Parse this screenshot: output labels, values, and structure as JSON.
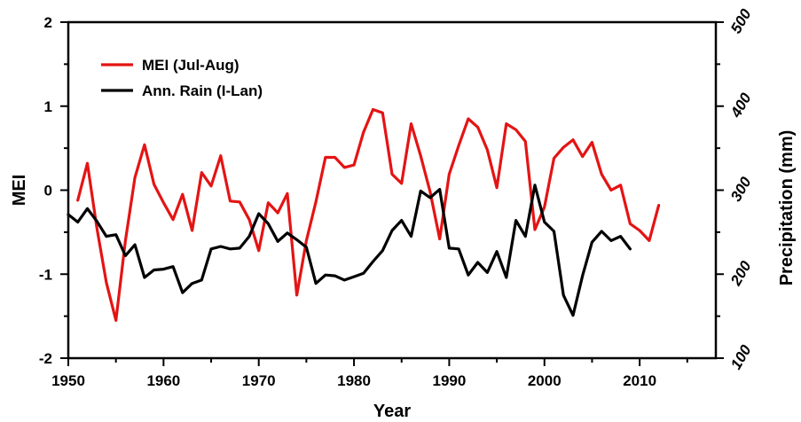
{
  "chart_data": {
    "type": "line",
    "xlabel": "Year",
    "ylabel": "MEI",
    "y2label": "Precipitation (mm)",
    "xlim": [
      1950,
      2018
    ],
    "ylim": [
      -2,
      2
    ],
    "y2lim": [
      100,
      500
    ],
    "xticks": [
      "1950",
      "1960",
      "1970",
      "1980",
      "1990",
      "2000",
      "2010"
    ],
    "yticks": [
      "-2",
      "-1",
      "0",
      "1",
      "2"
    ],
    "y2ticks": [
      "100",
      "200",
      "300",
      "400",
      "500"
    ],
    "legend_position": "top-left",
    "series": [
      {
        "name": "MEI (Jul-Aug)",
        "axis": "left",
        "color": "#e41414",
        "x": [
          1951,
          1952,
          1953,
          1954,
          1955,
          1956,
          1957,
          1958,
          1959,
          1960,
          1961,
          1962,
          1963,
          1964,
          1965,
          1966,
          1967,
          1968,
          1969,
          1970,
          1971,
          1972,
          1973,
          1974,
          1975,
          1976,
          1977,
          1978,
          1979,
          1980,
          1981,
          1982,
          1983,
          1984,
          1985,
          1986,
          1987,
          1988,
          1989,
          1990,
          1991,
          1992,
          1993,
          1994,
          1995,
          1996,
          1997,
          1998,
          1999,
          2000,
          2001,
          2002,
          2003,
          2004,
          2005,
          2006,
          2007,
          2008,
          2009,
          2010,
          2011,
          2012
        ],
        "values": [
          -0.12,
          0.32,
          -0.45,
          -1.1,
          -1.55,
          -0.6,
          0.15,
          0.54,
          0.07,
          -0.15,
          -0.35,
          -0.05,
          -0.48,
          0.21,
          0.05,
          0.41,
          -0.13,
          -0.14,
          -0.35,
          -0.72,
          -0.15,
          -0.27,
          -0.04,
          -1.25,
          -0.6,
          -0.14,
          0.39,
          0.39,
          0.27,
          0.3,
          0.69,
          0.96,
          0.92,
          0.19,
          0.08,
          0.79,
          0.41,
          -0.02,
          -0.58,
          0.19,
          0.53,
          0.85,
          0.75,
          0.48,
          0.03,
          0.79,
          0.72,
          0.58,
          -0.47,
          -0.2,
          0.38,
          0.51,
          0.6,
          0.4,
          0.57,
          0.19,
          0.0,
          0.06,
          -0.4,
          -0.48,
          -0.6,
          -0.18
        ]
      },
      {
        "name": "Ann. Rain (I-Lan)",
        "axis": "right",
        "color": "#000000",
        "x": [
          1950,
          1951,
          1952,
          1953,
          1954,
          1955,
          1956,
          1957,
          1958,
          1959,
          1960,
          1961,
          1962,
          1963,
          1964,
          1965,
          1966,
          1967,
          1968,
          1969,
          1970,
          1971,
          1972,
          1973,
          1974,
          1975,
          1976,
          1977,
          1978,
          1979,
          1980,
          1981,
          1982,
          1983,
          1984,
          1985,
          1986,
          1987,
          1988,
          1989,
          1990,
          1991,
          1992,
          1993,
          1994,
          1995,
          1996,
          1997,
          1998,
          1999,
          2000,
          2001,
          2002,
          2003,
          2004,
          2005,
          2006,
          2007,
          2008,
          2009
        ],
        "values": [
          271,
          262,
          278,
          263,
          245,
          247,
          222,
          235,
          196,
          205,
          206,
          209,
          178,
          189,
          193,
          230,
          233,
          230,
          231,
          245,
          272,
          260,
          239,
          249,
          241,
          232,
          189,
          199,
          198,
          193,
          197,
          201,
          215,
          228,
          252,
          264,
          245,
          299,
          291,
          301,
          231,
          230,
          199,
          214,
          202,
          227,
          196,
          264,
          245,
          306,
          262,
          251,
          175,
          151,
          198,
          238,
          251,
          240,
          245,
          230
        ]
      }
    ]
  }
}
